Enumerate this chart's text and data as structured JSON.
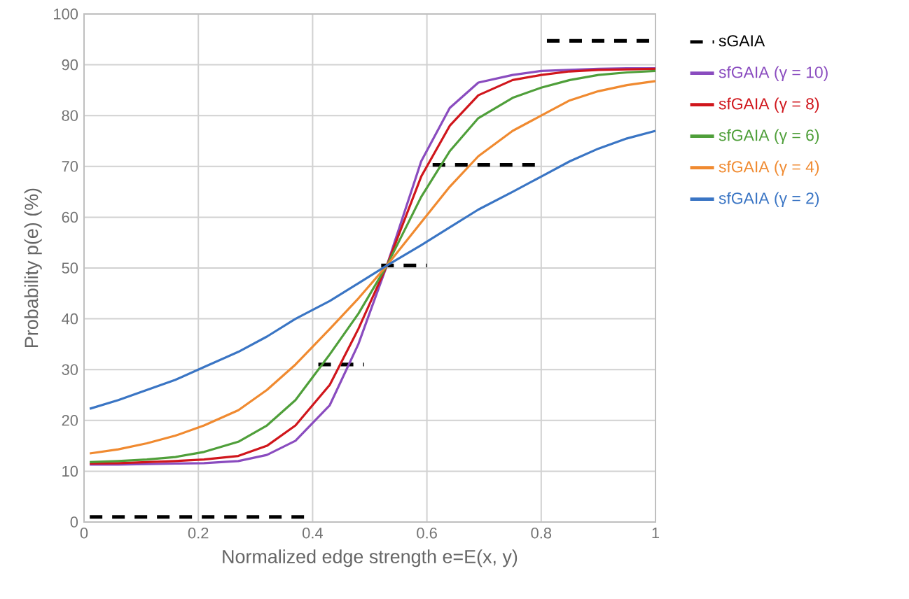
{
  "chart_data": {
    "type": "line",
    "xlabel": "Normalized edge strength e=E(x, y)",
    "ylabel": "Probability p(e) (%)",
    "xlim": [
      0,
      1
    ],
    "ylim": [
      0,
      100
    ],
    "xticks": [
      0,
      0.2,
      0.4,
      0.6,
      0.8,
      1
    ],
    "yticks": [
      0,
      10,
      20,
      30,
      40,
      50,
      60,
      70,
      80,
      90,
      100
    ],
    "grid": true,
    "legend": "right",
    "marker": "none",
    "x": [
      0.01,
      0.06,
      0.11,
      0.16,
      0.21,
      0.27,
      0.32,
      0.37,
      0.43,
      0.48,
      0.53,
      0.59,
      0.64,
      0.69,
      0.75,
      0.8,
      0.85,
      0.9,
      0.95,
      1.0
    ],
    "series": [
      {
        "name": "sGAIA",
        "color": "#000000",
        "line_style": "dashed",
        "x": [
          0.01,
          0.4,
          null,
          0.41,
          0.49,
          null,
          0.52,
          0.6,
          null,
          0.61,
          0.8,
          null,
          0.81,
          0.99
        ],
        "values": [
          1,
          1,
          null,
          31,
          31,
          null,
          50.5,
          50.5,
          null,
          70.3,
          70.3,
          null,
          94.7,
          94.7
        ]
      },
      {
        "name": "sfGAIA (γ = 10)",
        "color": "#8a4cbf",
        "values": [
          11.3,
          11.3,
          11.4,
          11.5,
          11.6,
          12,
          13.2,
          16,
          23,
          35,
          50.5,
          71,
          81.5,
          86.5,
          88,
          88.8,
          89,
          89.2,
          89.3,
          89.3
        ]
      },
      {
        "name": "sfGAIA (γ = 8)",
        "color": "#d0161c",
        "values": [
          11.5,
          11.6,
          11.8,
          12,
          12.3,
          13,
          15,
          19,
          27,
          38,
          50.5,
          68,
          78,
          84,
          87,
          88,
          88.7,
          89,
          89.1,
          89.2
        ]
      },
      {
        "name": "sfGAIA (γ = 6)",
        "color": "#4f9f3a",
        "values": [
          11.8,
          12,
          12.3,
          12.8,
          13.8,
          15.8,
          19,
          24,
          33,
          41,
          50.5,
          64,
          73,
          79.5,
          83.5,
          85.5,
          87,
          88,
          88.5,
          88.8
        ]
      },
      {
        "name": "sfGAIA (γ = 4)",
        "color": "#f08a30",
        "values": [
          13.5,
          14.3,
          15.5,
          17,
          19,
          22,
          26,
          31,
          38,
          44,
          50.5,
          59,
          66,
          72,
          77,
          80,
          83,
          84.8,
          86,
          86.8
        ]
      },
      {
        "name": "sfGAIA (γ = 2)",
        "color": "#3a75c4",
        "values": [
          22.3,
          24,
          26,
          28,
          30.5,
          33.5,
          36.5,
          40,
          43.5,
          47,
          50.5,
          54.5,
          58,
          61.5,
          65,
          68,
          71,
          73.5,
          75.5,
          77
        ]
      }
    ]
  }
}
